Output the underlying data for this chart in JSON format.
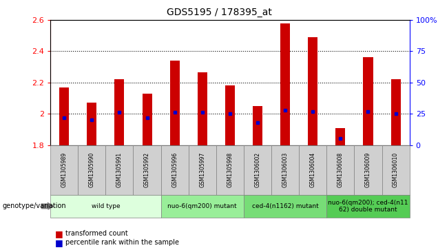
{
  "title": "GDS5195 / 178395_at",
  "samples": [
    "GSM1305989",
    "GSM1305990",
    "GSM1305991",
    "GSM1305992",
    "GSM1305996",
    "GSM1305997",
    "GSM1305998",
    "GSM1306002",
    "GSM1306003",
    "GSM1306004",
    "GSM1306008",
    "GSM1306009",
    "GSM1306010"
  ],
  "transformed_count": [
    2.17,
    2.07,
    2.22,
    2.13,
    2.34,
    2.265,
    2.18,
    2.05,
    2.58,
    2.49,
    1.91,
    2.36,
    2.22
  ],
  "percentile_rank": [
    22,
    20,
    26,
    22,
    26,
    26,
    25,
    18,
    28,
    27,
    5,
    27,
    25
  ],
  "ymin": 1.8,
  "ymax": 2.6,
  "yticks_left": [
    1.8,
    2.0,
    2.2,
    2.4,
    2.6
  ],
  "ytick_labels_left": [
    "1.8",
    "2",
    "2.2",
    "2.4",
    "2.6"
  ],
  "right_yticks": [
    0,
    25,
    50,
    75,
    100
  ],
  "right_ytick_labels": [
    "0",
    "25",
    "50",
    "75",
    "100%"
  ],
  "bar_color": "#cc0000",
  "dot_color": "#0000cc",
  "sample_bg_color": "#d0d0d0",
  "groups": [
    {
      "label": "wild type",
      "start": 0,
      "end": 3,
      "color": "#ddffdd"
    },
    {
      "label": "nuo-6(qm200) mutant",
      "start": 4,
      "end": 6,
      "color": "#99ee99"
    },
    {
      "label": "ced-4(n1162) mutant",
      "start": 7,
      "end": 9,
      "color": "#77dd77"
    },
    {
      "label": "nuo-6(qm200); ced-4(n11\n62) double mutant",
      "start": 10,
      "end": 12,
      "color": "#55cc55"
    }
  ],
  "legend_transformed": "transformed count",
  "legend_percentile": "percentile rank within the sample",
  "genotype_label": "genotype/variation"
}
